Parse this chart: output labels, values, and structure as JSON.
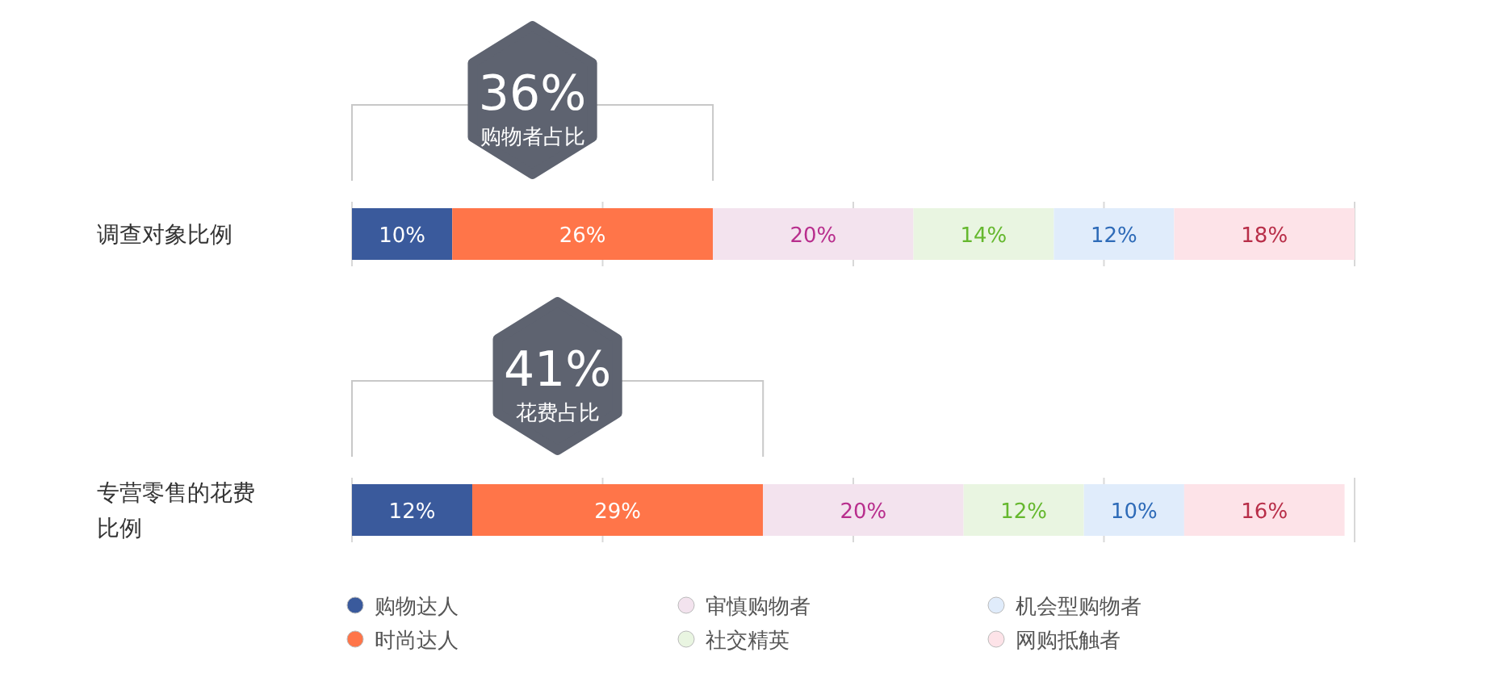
{
  "chart_data": {
    "type": "bar",
    "orientation": "horizontal",
    "stacked": true,
    "categories": [
      "调查对象比例",
      "专营零售的花费比例"
    ],
    "series": [
      {
        "name": "购物达人",
        "color": "#3a5a9c",
        "values": [
          10,
          12
        ],
        "value_labels": [
          "10%",
          "12%"
        ]
      },
      {
        "name": "时尚达人",
        "color": "#ff7549",
        "values": [
          26,
          29
        ],
        "value_labels": [
          "26%",
          "29%"
        ]
      },
      {
        "name": "审慎购物者",
        "color": "#f3e3ee",
        "values": [
          20,
          20
        ],
        "value_labels": [
          "20%",
          "20%"
        ]
      },
      {
        "name": "社交精英",
        "color": "#e9f5e1",
        "values": [
          14,
          12
        ],
        "value_labels": [
          "14%",
          "12%"
        ]
      },
      {
        "name": "机会型购物者",
        "color": "#e0ecfb",
        "values": [
          12,
          10
        ],
        "value_labels": [
          "12%",
          "10%"
        ]
      },
      {
        "name": "网购抵触者",
        "color": "#fde3e8",
        "values": [
          18,
          16
        ],
        "value_labels": [
          "18%",
          "16%"
        ]
      }
    ],
    "legend": "bottom",
    "annotations": [
      "36%",
      "购物者占比",
      "41%",
      "花费占比"
    ]
  }
}
